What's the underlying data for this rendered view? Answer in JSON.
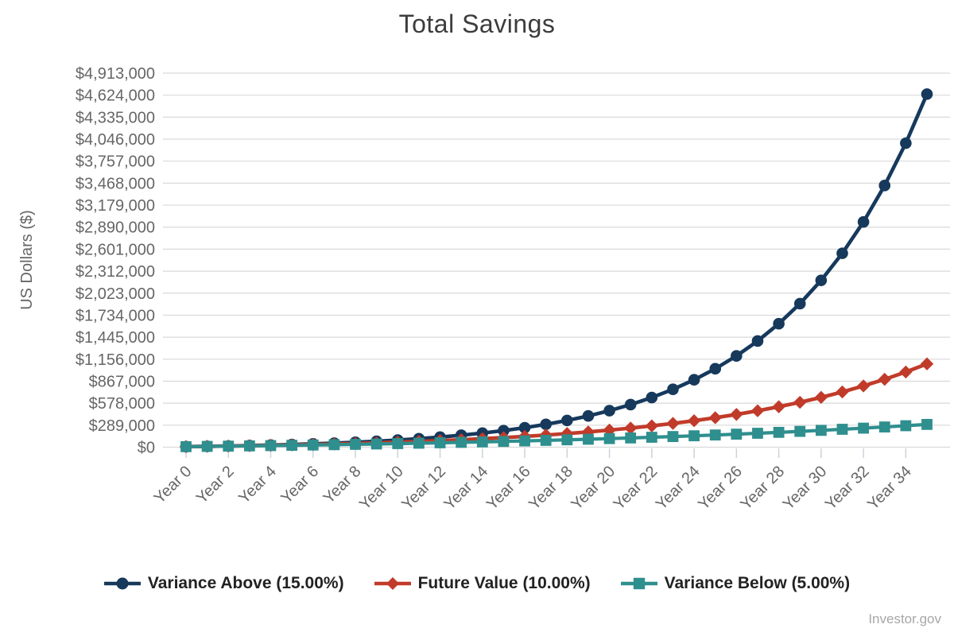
{
  "chart_data": {
    "type": "line",
    "title": "Total Savings",
    "xlabel": "",
    "ylabel": "US Dollars ($)",
    "source": "Investor.gov",
    "grid": "horizontal-only",
    "legend_position": "bottom",
    "background_color": "#ffffff",
    "gridline_color": "#d9d9d9",
    "tick_mark_color": "#ccd3d9",
    "tick_text_color": "#666666",
    "ylim": [
      0,
      4913000
    ],
    "y_tick_step": 289000,
    "y_ticks": [
      0,
      289000,
      578000,
      867000,
      1156000,
      1445000,
      1734000,
      2023000,
      2312000,
      2601000,
      2890000,
      3179000,
      3468000,
      3757000,
      4046000,
      4335000,
      4624000,
      4913000
    ],
    "y_tick_labels": [
      "$0",
      "$289,000",
      "$578,000",
      "$867,000",
      "$1,156,000",
      "$1,445,000",
      "$1,734,000",
      "$2,023,000",
      "$2,312,000",
      "$2,601,000",
      "$2,890,000",
      "$3,179,000",
      "$3,468,000",
      "$3,757,000",
      "$4,046,000",
      "$4,335,000",
      "$4,624,000",
      "$4,913,000"
    ],
    "x": [
      0,
      1,
      2,
      3,
      4,
      5,
      6,
      7,
      8,
      9,
      10,
      11,
      12,
      13,
      14,
      15,
      16,
      17,
      18,
      19,
      20,
      21,
      22,
      23,
      24,
      25,
      26,
      27,
      28,
      29,
      30,
      31,
      32,
      33,
      34,
      35
    ],
    "x_tick_years": [
      0,
      2,
      4,
      6,
      8,
      10,
      12,
      14,
      16,
      18,
      20,
      22,
      24,
      26,
      28,
      30,
      32,
      34
    ],
    "x_tick_labels": [
      "Year 0",
      "Year 2",
      "Year 4",
      "Year 6",
      "Year 8",
      "Year 10",
      "Year 12",
      "Year 14",
      "Year 16",
      "Year 18",
      "Year 20",
      "Year 22",
      "Year 24",
      "Year 26",
      "Year 28",
      "Year 30",
      "Year 32",
      "Year 34"
    ],
    "series": [
      {
        "id": "variance-above",
        "name": "Variance Above (15.00%)",
        "rate_percent": "15.00%",
        "color": "#16395c",
        "marker": "circle",
        "values": [
          7000,
          11058,
          15767,
          21234,
          27580,
          34945,
          43495,
          53419,
          64939,
          78311,
          93832,
          111848,
          132758,
          157034,
          185210,
          217916,
          255879,
          299946,
          351096,
          410469,
          479386,
          559382,
          652237,
          760019,
          885127,
          1030346,
          1198910,
          1394571,
          1621685,
          1885309,
          2191313,
          2546509,
          2958722,
          3437175,
          3992683,
          4637484
        ]
      },
      {
        "id": "future-value",
        "name": "Future Value (10.00%)",
        "rate_percent": "10.00%",
        "color": "#c13b2a",
        "marker": "diamond",
        "values": [
          7000,
          10598,
          14573,
          18964,
          23814,
          29173,
          35093,
          41632,
          48857,
          56837,
          65654,
          75393,
          86153,
          98039,
          111170,
          125676,
          141700,
          159403,
          178959,
          200563,
          224429,
          250794,
          279921,
          312097,
          347642,
          386910,
          430290,
          478232,
          531192,
          589675,
          654283,
          725658,
          804466,
          891571,
          987798,
          1094100
        ]
      },
      {
        "id": "variance-below",
        "name": "Variance Below (5.00%)",
        "rate_percent": "5.00%",
        "color": "#2e8f8e",
        "marker": "square",
        "values": [
          7000,
          10158,
          13477,
          16966,
          20634,
          24489,
          28542,
          32801,
          37279,
          41986,
          46934,
          52135,
          57601,
          63348,
          69389,
          75738,
          82413,
          89429,
          96804,
          104556,
          112705,
          121271,
          130275,
          139740,
          149689,
          160147,
          171140,
          182696,
          194842,
          207610,
          221031,
          235139,
          249969,
          265557,
          281943,
          299167
        ]
      }
    ]
  }
}
